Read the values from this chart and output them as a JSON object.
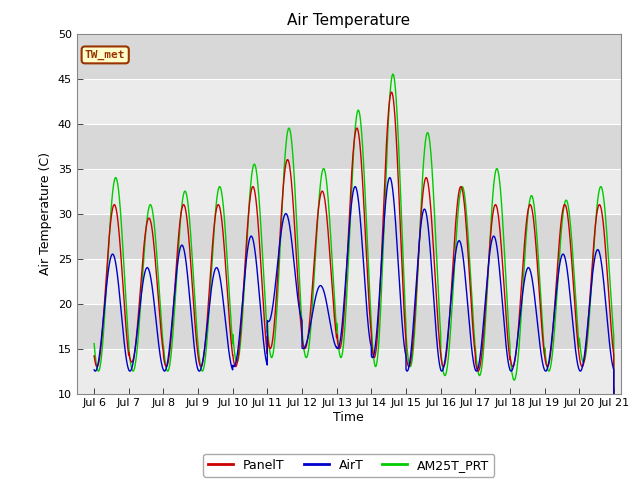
{
  "title": "Air Temperature",
  "ylabel": "Air Temperature (C)",
  "xlabel": "Time",
  "ylim": [
    10,
    50
  ],
  "xlim_days": [
    5.5,
    21.2
  ],
  "xtick_days": [
    6,
    7,
    8,
    9,
    10,
    11,
    12,
    13,
    14,
    15,
    16,
    17,
    18,
    19,
    20,
    21
  ],
  "xtick_labels": [
    "Jul 6",
    "Jul 7",
    "Jul 8",
    "Jul 9",
    "Jul 10",
    "Jul 11",
    "Jul 12",
    "Jul 13",
    "Jul 14",
    "Jul 15",
    "Jul 16",
    "Jul 17",
    "Jul 18",
    "Jul 19",
    "Jul 20",
    "Jul 21"
  ],
  "ytick_values": [
    10,
    15,
    20,
    25,
    30,
    35,
    40,
    45,
    50
  ],
  "color_panel": "#cc0000",
  "color_air": "#0000cc",
  "color_am25": "#00cc00",
  "label_text": "TW_met",
  "label_bg": "#ffffcc",
  "label_border": "#993300",
  "legend_labels": [
    "PanelT",
    "AirT",
    "AM25T_PRT"
  ],
  "bg_color_light": "#ebebeb",
  "bg_color_dark": "#d8d8d8",
  "title_fontsize": 11,
  "axis_fontsize": 9,
  "tick_fontsize": 8,
  "legend_fontsize": 9,
  "linewidth": 1.0
}
